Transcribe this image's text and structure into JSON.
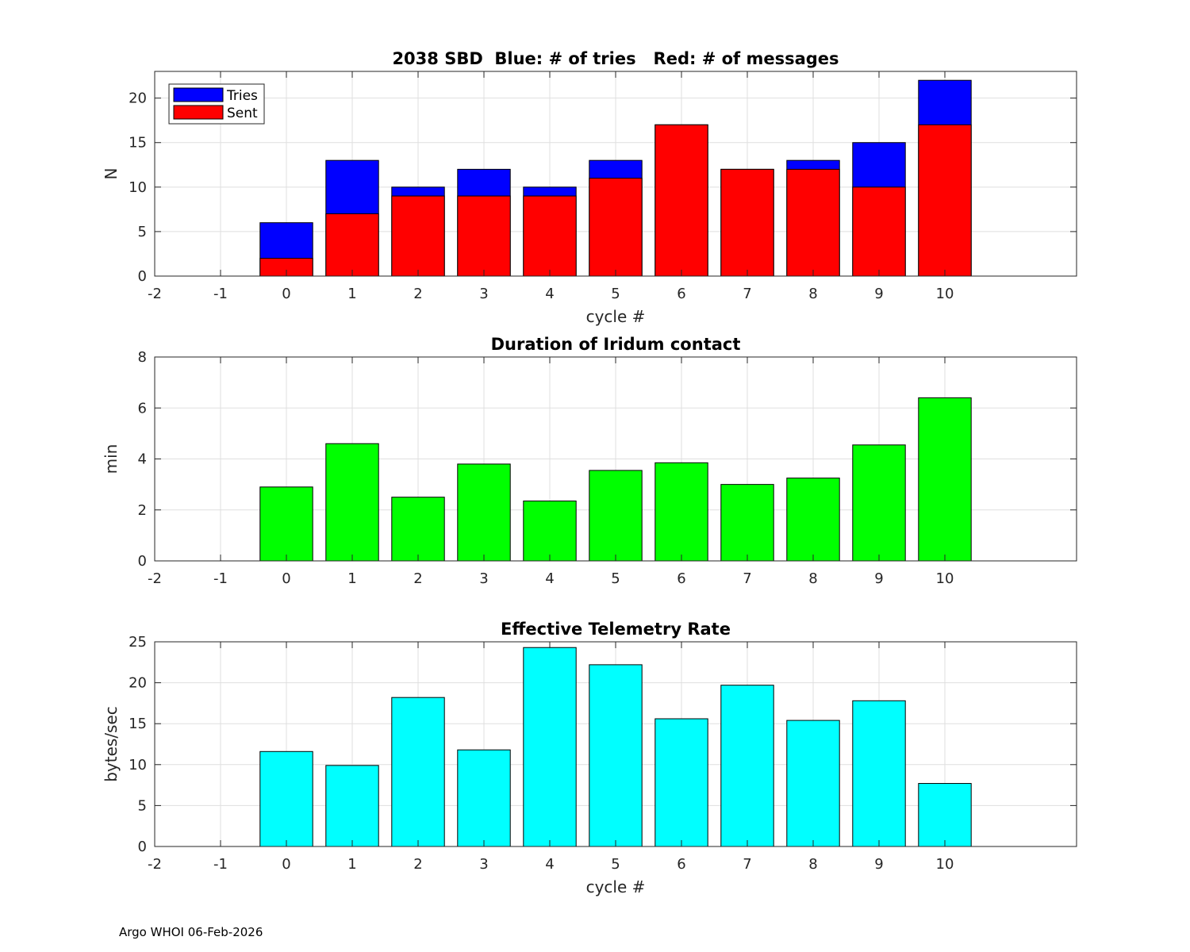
{
  "footer": "Argo WHOI 06-Feb-2026",
  "chart_data": [
    {
      "type": "bar",
      "stacked": "overlay",
      "title": "2038 SBD  Blue: # of tries   Red: # of messages",
      "xlabel": "cycle #",
      "ylabel": "N",
      "xlim": [
        -2,
        12
      ],
      "ylim": [
        0,
        23
      ],
      "xticks": [
        -2,
        -1,
        0,
        1,
        2,
        3,
        4,
        5,
        6,
        7,
        8,
        9,
        10
      ],
      "yticks": [
        0,
        5,
        10,
        15,
        20
      ],
      "grid": true,
      "legend": "top-left",
      "categories": [
        0,
        1,
        2,
        3,
        4,
        5,
        6,
        7,
        8,
        9,
        10
      ],
      "series": [
        {
          "name": "Tries",
          "color": "#0000ff",
          "values": [
            6,
            13,
            10,
            12,
            10,
            13,
            17,
            12,
            13,
            15,
            22
          ]
        },
        {
          "name": "Sent",
          "color": "#ff0000",
          "values": [
            2,
            7,
            9,
            9,
            9,
            11,
            17,
            12,
            12,
            10,
            17
          ]
        }
      ]
    },
    {
      "type": "bar",
      "title": "Duration of Iridum contact",
      "xlabel": "",
      "ylabel": "min",
      "xlim": [
        -2,
        12
      ],
      "ylim": [
        0,
        8
      ],
      "xticks": [
        -2,
        -1,
        0,
        1,
        2,
        3,
        4,
        5,
        6,
        7,
        8,
        9,
        10
      ],
      "yticks": [
        0,
        2,
        4,
        6,
        8
      ],
      "grid": true,
      "categories": [
        0,
        1,
        2,
        3,
        4,
        5,
        6,
        7,
        8,
        9,
        10
      ],
      "series": [
        {
          "name": "Duration",
          "color": "#00ff00",
          "values": [
            2.9,
            4.6,
            2.5,
            3.8,
            2.35,
            3.55,
            3.85,
            3.0,
            3.25,
            4.55,
            6.4
          ]
        }
      ]
    },
    {
      "type": "bar",
      "title": "Effective Telemetry Rate",
      "xlabel": "cycle #",
      "ylabel": "bytes/sec",
      "xlim": [
        -2,
        12
      ],
      "ylim": [
        0,
        25
      ],
      "xticks": [
        -2,
        -1,
        0,
        1,
        2,
        3,
        4,
        5,
        6,
        7,
        8,
        9,
        10
      ],
      "yticks": [
        0,
        5,
        10,
        15,
        20,
        25
      ],
      "grid": true,
      "categories": [
        0,
        1,
        2,
        3,
        4,
        5,
        6,
        7,
        8,
        9,
        10
      ],
      "series": [
        {
          "name": "Rate",
          "color": "#00ffff",
          "values": [
            11.6,
            9.9,
            18.2,
            11.8,
            24.3,
            22.2,
            15.6,
            19.7,
            15.4,
            17.8,
            7.7
          ]
        }
      ]
    }
  ]
}
